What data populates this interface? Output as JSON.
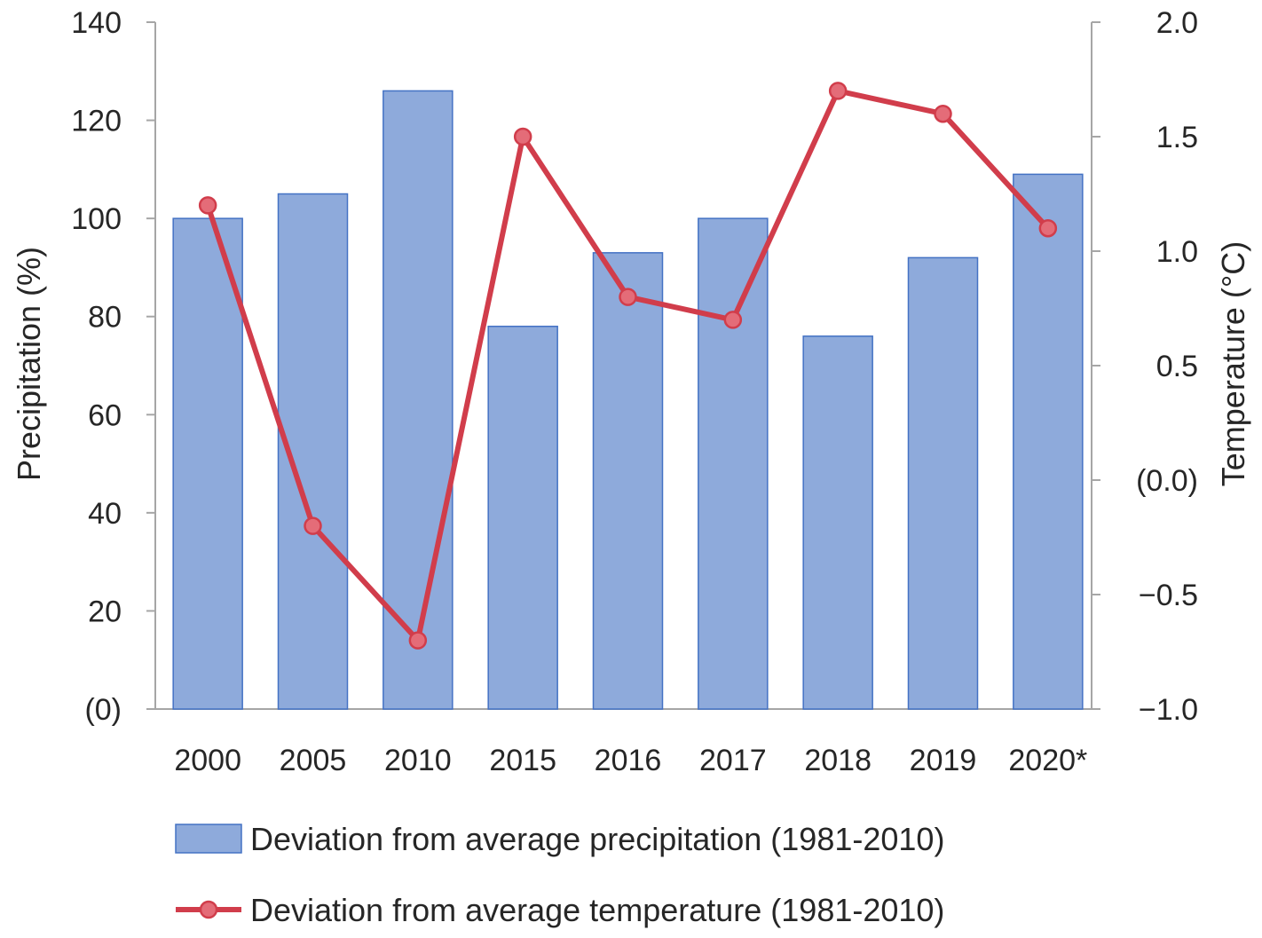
{
  "chart_data": {
    "type": "bar",
    "categories": [
      "2000",
      "2005",
      "2010",
      "2015",
      "2016",
      "2017",
      "2018",
      "2019",
      "2020*"
    ],
    "series": [
      {
        "name": "Deviation from average precipitation (1981-2010)",
        "type": "bar",
        "axis": "left",
        "values": [
          100,
          105,
          126,
          78,
          93,
          100,
          76,
          92,
          109
        ]
      },
      {
        "name": "Deviation from average temperature (1981-2010)",
        "type": "line",
        "axis": "right",
        "values": [
          1.2,
          -0.2,
          -0.7,
          1.5,
          0.8,
          0.7,
          1.7,
          1.6,
          1.1
        ]
      }
    ],
    "y_left": {
      "label": "Precipitation (%)",
      "ylim": [
        0,
        140
      ],
      "ticks": [
        0,
        20,
        40,
        60,
        80,
        100,
        120,
        140
      ],
      "tick_labels": [
        "(0)",
        "20",
        "40",
        "60",
        "80",
        "100",
        "120",
        "140"
      ]
    },
    "y_right": {
      "label": "Temperature (°C)",
      "ylim": [
        -1.0,
        2.0
      ],
      "ticks": [
        -1.0,
        -0.5,
        0.0,
        0.5,
        1.0,
        1.5,
        2.0
      ],
      "tick_labels": [
        "−1.0",
        "−0.5",
        "(0.0)",
        "0.5",
        "1.0",
        "1.5",
        "2.0"
      ]
    },
    "grid": false,
    "legend": "bottom",
    "colors": {
      "bar_fill": "#8eaadb",
      "bar_stroke": "#4472c4",
      "line": "#d13d4b",
      "marker_fill": "#e46c78",
      "axis": "#a6a6a6",
      "text": "#262626"
    }
  }
}
